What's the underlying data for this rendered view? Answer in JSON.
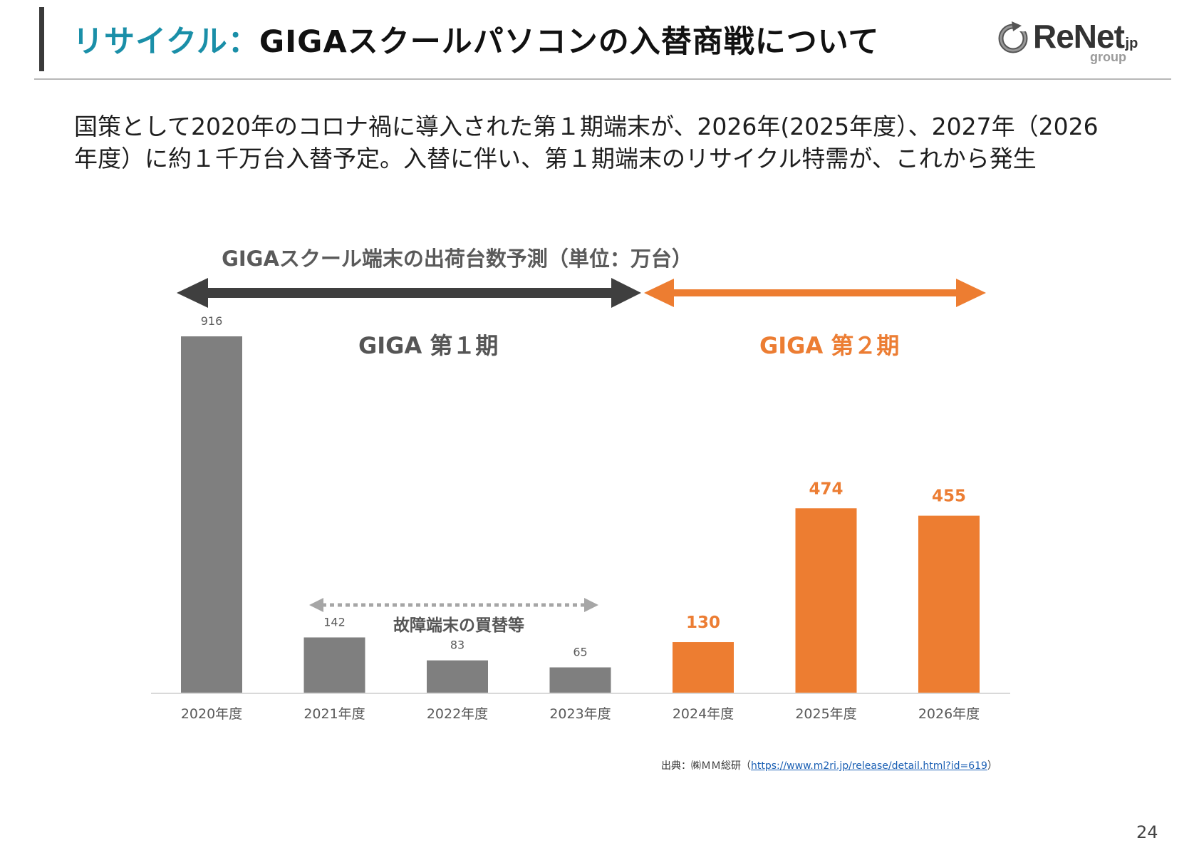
{
  "header": {
    "title_accent": "リサイクル：",
    "title_main": "GIGAスクールパソコンの入替商戦について"
  },
  "logo": {
    "name": "ReNet",
    "suffix": ".jp",
    "group": "group"
  },
  "intro_text": "国策として2020年のコロナ禍に導入された第１期端末が、2026年(2025年度）、2027年（2026年度）に約１千万台入替予定。入替に伴い、第１期端末のリサイクル特需が、これから発生",
  "colors": {
    "gray_bar": "#7f7f7f",
    "orange_bar": "#ed7d31",
    "dark_arrow": "#3f3f3f",
    "title_accent": "#1a8fa8"
  },
  "phases": {
    "phase1_label": "GIGA 第１期",
    "phase2_label": "GIGA 第２期"
  },
  "annotation": {
    "note_label": "故障端末の買替等"
  },
  "chart_data": {
    "type": "bar",
    "title": "GIGAスクール端末の出荷台数予測（単位：万台）",
    "categories": [
      "2020年度",
      "2021年度",
      "2022年度",
      "2023年度",
      "2024年度",
      "2025年度",
      "2026年度"
    ],
    "values": [
      916,
      142,
      83,
      65,
      130,
      474,
      455
    ],
    "bar_colors": [
      "#7f7f7f",
      "#7f7f7f",
      "#7f7f7f",
      "#7f7f7f",
      "#ed7d31",
      "#ed7d31",
      "#ed7d31"
    ],
    "ylim": [
      0,
      916
    ],
    "grid": false,
    "legend": "none"
  },
  "source": {
    "prefix": "出典：㈱ＭＭ総研（",
    "url": "https://www.m2ri.jp/release/detail.html?id=619",
    "suffix": "）"
  },
  "page_number": "24"
}
